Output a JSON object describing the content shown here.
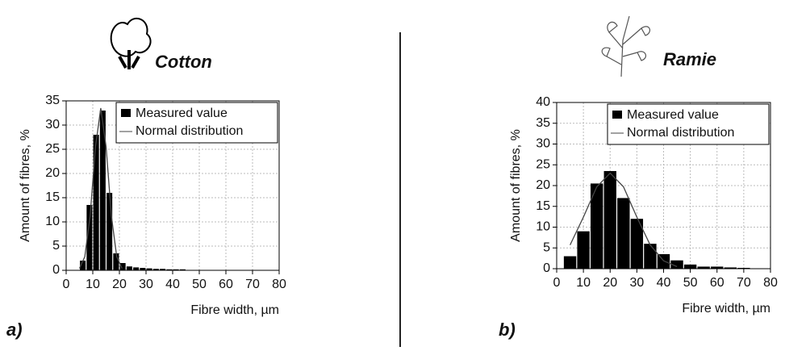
{
  "chart_data": [
    {
      "type": "histogram",
      "title": "Cotton",
      "panel_label": "a)",
      "xlabel": "Fibre width, µm",
      "ylabel": "Amount of fibres, %",
      "bins": [
        5,
        7.5,
        10,
        12.5,
        15,
        17.5,
        20,
        22.5,
        25,
        27.5,
        30,
        32.5,
        35,
        37.5,
        40,
        42.5,
        45
      ],
      "values": [
        2,
        13.5,
        28,
        33,
        16,
        3.5,
        1.5,
        0.8,
        0.6,
        0.5,
        0.4,
        0.3,
        0.3,
        0.2,
        0.2,
        0.2
      ],
      "bar_name": "Measured value",
      "color": "#000000",
      "curve": {
        "name": "Normal distribution",
        "color": "#444444",
        "x": [
          5,
          7,
          9,
          11,
          13,
          15,
          17,
          19,
          21
        ],
        "values": [
          0.4,
          2.8,
          11.2,
          25.5,
          33.5,
          25.5,
          11.2,
          2.8,
          0.4
        ]
      },
      "xlim": [
        0,
        80
      ],
      "ylim": [
        0,
        35
      ],
      "xticks": [
        0,
        10,
        20,
        30,
        40,
        50,
        60,
        70,
        80
      ],
      "yticks": [
        0,
        5,
        10,
        15,
        20,
        25,
        30,
        35
      ],
      "grid": true,
      "legend": "upper right"
    },
    {
      "type": "histogram",
      "title": "Ramie",
      "panel_label": "b)",
      "xlabel": "Fibre width, µm",
      "ylabel": "Amount of fibres, %",
      "bins": [
        2.5,
        7.5,
        12.5,
        17.5,
        22.5,
        27.5,
        32.5,
        37.5,
        42.5,
        47.5,
        52.5,
        57.5,
        62.5,
        67.5,
        72.5
      ],
      "values": [
        3,
        9,
        20.5,
        23.5,
        17,
        12,
        6,
        3.5,
        2,
        1,
        0.5,
        0.5,
        0.3,
        0.2
      ],
      "bar_name": "Measured value",
      "color": "#000000",
      "curve": {
        "name": "Normal distribution",
        "color": "#444444",
        "x": [
          5,
          10,
          15,
          20,
          25,
          30,
          35,
          40,
          45
        ],
        "values": [
          5.7,
          12.4,
          19.7,
          23,
          19.7,
          12.4,
          5.7,
          1.9,
          0.5
        ]
      },
      "xlim": [
        0,
        80
      ],
      "ylim": [
        0,
        40
      ],
      "xticks": [
        0,
        10,
        20,
        30,
        40,
        50,
        60,
        70,
        80
      ],
      "yticks": [
        0,
        5,
        10,
        15,
        20,
        25,
        30,
        35,
        40
      ],
      "grid": true,
      "legend": "upper right"
    }
  ]
}
